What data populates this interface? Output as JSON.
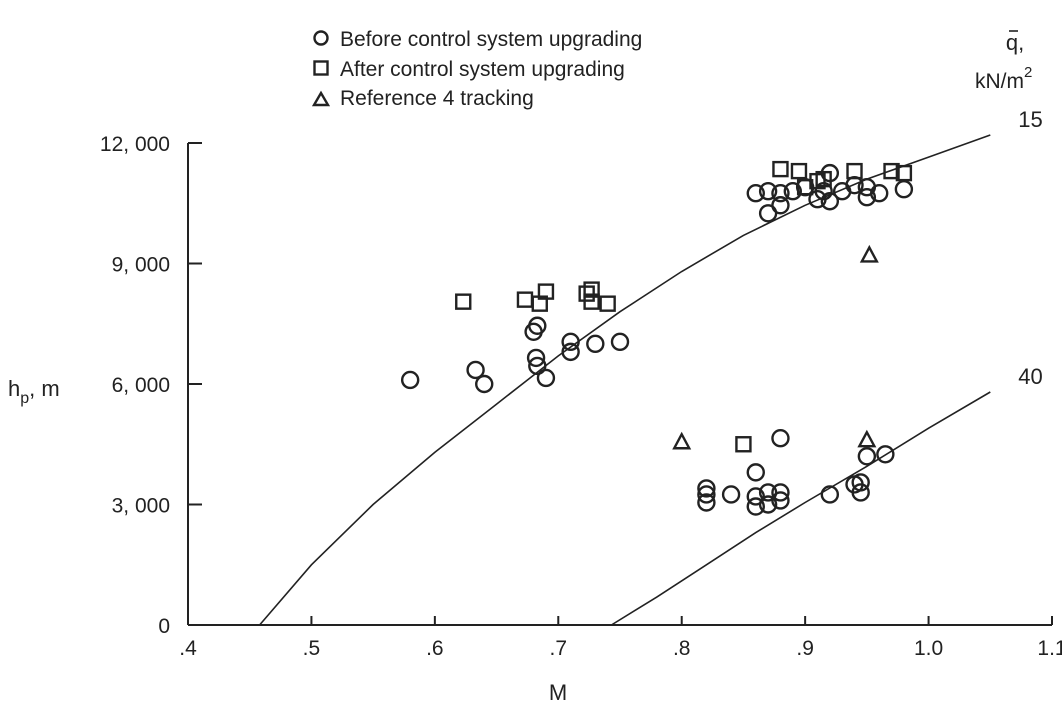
{
  "chart_data": {
    "type": "scatter",
    "xlabel": "M",
    "ylabel": "h",
    "ylabel_sub": "p",
    "ylabel_unit": ", m",
    "xlim": [
      0.4,
      1.1
    ],
    "ylim": [
      0,
      12000
    ],
    "x_ticks": [
      {
        "value": 0.4,
        "label": ".4"
      },
      {
        "value": 0.5,
        "label": ".5"
      },
      {
        "value": 0.6,
        "label": ".6"
      },
      {
        "value": 0.7,
        "label": ".7"
      },
      {
        "value": 0.8,
        "label": ".8"
      },
      {
        "value": 0.9,
        "label": ".9"
      },
      {
        "value": 1.0,
        "label": "1.0"
      },
      {
        "value": 1.1,
        "label": "1.1"
      }
    ],
    "y_ticks": [
      {
        "value": 0,
        "label": "0"
      },
      {
        "value": 3000,
        "label": "3, 000"
      },
      {
        "value": 6000,
        "label": "6, 000"
      },
      {
        "value": 9000,
        "label": "9, 000"
      },
      {
        "value": 12000,
        "label": "12, 000"
      }
    ],
    "grid": false,
    "legend_position": "top-center",
    "curve_legend": {
      "symbol": "q",
      "comma": ",",
      "unit": "kN/m",
      "unit_sup": "2"
    },
    "curves": [
      {
        "label": "15",
        "points": [
          [
            0.458,
            0
          ],
          [
            0.5,
            1500
          ],
          [
            0.55,
            3000
          ],
          [
            0.6,
            4300
          ],
          [
            0.65,
            5500
          ],
          [
            0.7,
            6700
          ],
          [
            0.75,
            7800
          ],
          [
            0.8,
            8800
          ],
          [
            0.85,
            9700
          ],
          [
            0.9,
            10450
          ],
          [
            0.95,
            11100
          ],
          [
            1.0,
            11650
          ],
          [
            1.05,
            12200
          ]
        ]
      },
      {
        "label": "40",
        "points": [
          [
            0.743,
            0
          ],
          [
            0.78,
            700
          ],
          [
            0.82,
            1500
          ],
          [
            0.86,
            2300
          ],
          [
            0.9,
            3050
          ],
          [
            0.95,
            3950
          ],
          [
            1.0,
            4900
          ],
          [
            1.05,
            5800
          ]
        ]
      }
    ],
    "series": [
      {
        "name": "Before control system upgrading",
        "marker": "circle",
        "points": [
          [
            0.58,
            6100
          ],
          [
            0.633,
            6350
          ],
          [
            0.64,
            6000
          ],
          [
            0.68,
            7300
          ],
          [
            0.683,
            7450
          ],
          [
            0.682,
            6650
          ],
          [
            0.683,
            6450
          ],
          [
            0.69,
            6150
          ],
          [
            0.71,
            6800
          ],
          [
            0.71,
            7050
          ],
          [
            0.73,
            7000
          ],
          [
            0.75,
            7050
          ],
          [
            0.86,
            10750
          ],
          [
            0.87,
            10800
          ],
          [
            0.87,
            10250
          ],
          [
            0.88,
            10750
          ],
          [
            0.88,
            10450
          ],
          [
            0.89,
            10800
          ],
          [
            0.9,
            10900
          ],
          [
            0.91,
            10600
          ],
          [
            0.915,
            10800
          ],
          [
            0.92,
            11250
          ],
          [
            0.92,
            10550
          ],
          [
            0.93,
            10800
          ],
          [
            0.94,
            10950
          ],
          [
            0.95,
            10650
          ],
          [
            0.95,
            10900
          ],
          [
            0.96,
            10750
          ],
          [
            0.98,
            10850
          ],
          [
            0.82,
            3400
          ],
          [
            0.82,
            3250
          ],
          [
            0.82,
            3050
          ],
          [
            0.84,
            3250
          ],
          [
            0.86,
            2950
          ],
          [
            0.86,
            3200
          ],
          [
            0.86,
            3800
          ],
          [
            0.87,
            3300
          ],
          [
            0.87,
            3000
          ],
          [
            0.88,
            3100
          ],
          [
            0.88,
            3300
          ],
          [
            0.88,
            4650
          ],
          [
            0.92,
            3250
          ],
          [
            0.94,
            3500
          ],
          [
            0.945,
            3550
          ],
          [
            0.945,
            3300
          ],
          [
            0.95,
            4200
          ],
          [
            0.965,
            4250
          ]
        ]
      },
      {
        "name": "After control system upgrading",
        "marker": "square",
        "points": [
          [
            0.623,
            8050
          ],
          [
            0.673,
            8100
          ],
          [
            0.685,
            8000
          ],
          [
            0.69,
            8300
          ],
          [
            0.723,
            8250
          ],
          [
            0.727,
            8350
          ],
          [
            0.727,
            8050
          ],
          [
            0.74,
            8000
          ],
          [
            0.88,
            11350
          ],
          [
            0.895,
            11300
          ],
          [
            0.9,
            10900
          ],
          [
            0.91,
            11050
          ],
          [
            0.915,
            11100
          ],
          [
            0.94,
            11300
          ],
          [
            0.97,
            11300
          ],
          [
            0.98,
            11250
          ],
          [
            0.85,
            4500
          ]
        ]
      },
      {
        "name": "Reference 4 tracking",
        "marker": "triangle",
        "points": [
          [
            0.8,
            4550
          ],
          [
            0.95,
            4600
          ],
          [
            0.952,
            9200
          ]
        ]
      }
    ]
  }
}
